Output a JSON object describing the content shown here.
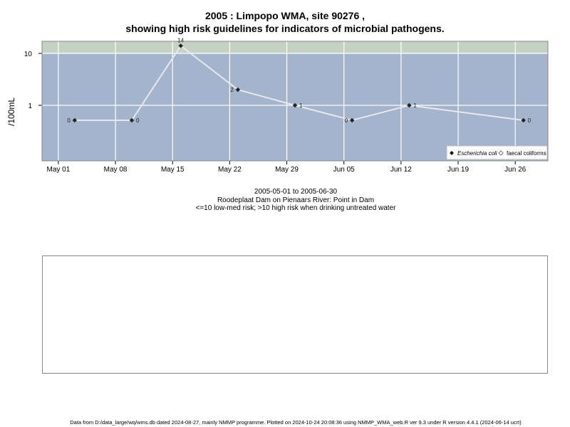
{
  "title_line1": "2005 : Limpopo WMA, site 90276 ,",
  "title_line2": "showing high risk guidelines for indicators of microbial pathogens.",
  "sub_date_range": "2005-05-01 to 2005-06-30",
  "sub_site": "Roodeplaat Dam on Pienaars River: Point in Dam",
  "sub_risk": "<=10 low-med risk; >10 high risk when drinking untreated water",
  "footer": "Data from D:/data_large/wq/wms.db dated 2024-08-27, mainly NMMP programme. Plotted on 2024-10-24 20:08:36 using NMMP_WMA_web.R ver 9.3 under R version 4.4.1 (2024-06-14 ucrt)",
  "colors": {
    "plot_bg": "#a3b4cc",
    "high_risk_band": "#c4d2c3",
    "line": "#e8e8ee",
    "point": "#222222",
    "grid": "#ffffff"
  },
  "chart_data": {
    "type": "line",
    "ylabel": "/100mL",
    "y_scale": "log",
    "y_ticks": [
      "1",
      "10"
    ],
    "x_ticks": [
      "May 01",
      "May 08",
      "May 15",
      "May 22",
      "May 29",
      "Jun 05",
      "Jun 12",
      "Jun 19",
      "Jun 26"
    ],
    "x_range": [
      "2005-04-29",
      "2005-06-30"
    ],
    "high_risk_threshold": 10,
    "legend": {
      "position": "bottom-right",
      "entries": [
        {
          "label": "Escherichia coli",
          "marker": "filled-diamond"
        },
        {
          "label": "faecal coliforms",
          "marker": "open-diamond"
        }
      ]
    },
    "series": [
      {
        "name": "Escherichia coli",
        "x": [
          "2005-05-03",
          "2005-05-10",
          "2005-05-16",
          "2005-05-23",
          "2005-05-30",
          "2005-06-06",
          "2005-06-13",
          "2005-06-27"
        ],
        "y": [
          0,
          0,
          14,
          2,
          1,
          0,
          1,
          0
        ],
        "labels": [
          "0",
          "0",
          "14",
          "2",
          "1",
          "0",
          "1",
          "0"
        ],
        "label_side": [
          "left",
          "right",
          "top",
          "left",
          "right",
          "left",
          "right",
          "right"
        ]
      }
    ]
  }
}
